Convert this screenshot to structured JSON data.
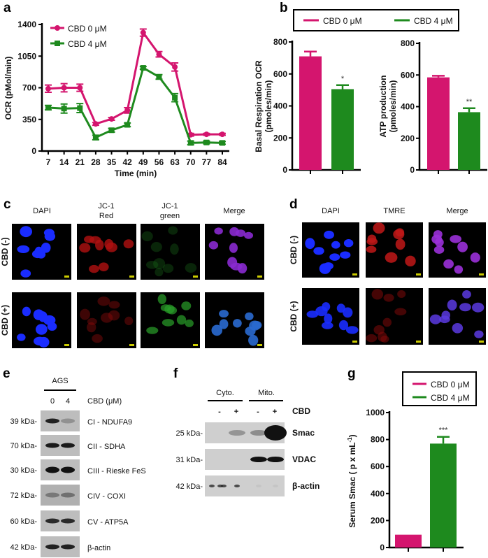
{
  "colors": {
    "cbd0": "#d4156e",
    "cbd4": "#1e8a1e"
  },
  "panels": {
    "a": "a",
    "b": "b",
    "c": "c",
    "d": "d",
    "e": "e",
    "f": "f",
    "g": "g"
  },
  "chart_data": [
    {
      "type": "line",
      "panel": "a",
      "xlabel": "Time (min)",
      "ylabel": "OCR (pMol/min)",
      "ylim": [
        0,
        1400
      ],
      "yticks": [
        "0",
        "350",
        "700",
        "1050",
        "1400"
      ],
      "x": [
        7,
        14,
        21,
        28,
        35,
        42,
        49,
        56,
        63,
        70,
        77,
        84
      ],
      "series": [
        {
          "name": "CBD 0 μM",
          "values": [
            690,
            700,
            700,
            300,
            355,
            450,
            1310,
            1070,
            930,
            180,
            185,
            185
          ],
          "errors": [
            40,
            45,
            40,
            15,
            15,
            30,
            40,
            30,
            45,
            15,
            10,
            10
          ]
        },
        {
          "name": "CBD 4 μM",
          "values": [
            480,
            470,
            475,
            150,
            230,
            290,
            920,
            820,
            590,
            90,
            95,
            90
          ],
          "errors": [
            25,
            50,
            50,
            25,
            20,
            20,
            15,
            25,
            45,
            20,
            15,
            15
          ]
        }
      ],
      "legend": "top-left"
    },
    {
      "type": "bar",
      "panel": "b",
      "ylabel": "Basal Respiration OCR (pmoles/min)",
      "ylim": [
        0,
        800
      ],
      "yticks": [
        "0",
        "200",
        "400",
        "600",
        "800"
      ],
      "categories": [
        "CBD 0 μM",
        "CBD 4 μM"
      ],
      "values": [
        710,
        505
      ],
      "errors": [
        30,
        25
      ],
      "annotations": [
        "",
        "*"
      ]
    },
    {
      "type": "bar",
      "panel": "b",
      "ylabel": "ATP production (pmoles/min)",
      "ylim": [
        0,
        800
      ],
      "yticks": [
        "0",
        "200",
        "400",
        "600",
        "800"
      ],
      "categories": [
        "CBD 0 μM",
        "CBD 4 μM"
      ],
      "values": [
        585,
        365
      ],
      "errors": [
        10,
        25
      ],
      "annotations": [
        "",
        "**"
      ]
    },
    {
      "type": "bar",
      "panel": "g",
      "ylabel": "Serum Smac ( p x mL",
      "ylabel_sup": "-1",
      "ylabel_end": ")",
      "ylim": [
        0,
        1000
      ],
      "yticks": [
        "0",
        "200",
        "400",
        "600",
        "800",
        "1000"
      ],
      "categories": [
        "CBD 0 μM",
        "CBD 4 μM"
      ],
      "values": [
        95,
        770
      ],
      "errors": [
        0,
        50
      ],
      "annotations": [
        "",
        "***"
      ]
    }
  ],
  "legend": [
    "CBD 0 μM",
    "CBD 4 μM"
  ],
  "panel_c": {
    "columns": [
      "DAPI",
      "JC-1",
      "Red",
      "JC-1",
      "green",
      "Merge"
    ],
    "rows": [
      "CBD (-)",
      "CBD (+)"
    ]
  },
  "panel_d": {
    "columns": [
      "DAPI",
      "TMRE",
      "Merge"
    ],
    "rows": [
      "CBD (-)",
      "CBD (+)"
    ]
  },
  "panel_e": {
    "group": "AGS",
    "lanes": [
      "0",
      "4"
    ],
    "condition": "CBD (μM)",
    "bands": [
      {
        "kda": "39 kDa-",
        "name": "CI - NDUFA9"
      },
      {
        "kda": "70 kDa-",
        "name": "CII - SDHA"
      },
      {
        "kda": "30 kDa-",
        "name": "CIII - Rieske FeS"
      },
      {
        "kda": "72 kDa-",
        "name": "CIV - COXI"
      },
      {
        "kda": "60 kDa-",
        "name": "CV - ATP5A"
      },
      {
        "kda": "42 kDa-",
        "name": "β-actin"
      }
    ]
  },
  "panel_f": {
    "groups": [
      "Cyto.",
      "Mito."
    ],
    "lanes": [
      "-",
      "+",
      "-",
      "+"
    ],
    "condition": "CBD",
    "bands": [
      {
        "kda": "25 kDa-",
        "name": "Smac"
      },
      {
        "kda": "31 kDa-",
        "name": "VDAC"
      },
      {
        "kda": "42 kDa-",
        "name": "β-actin"
      }
    ]
  }
}
